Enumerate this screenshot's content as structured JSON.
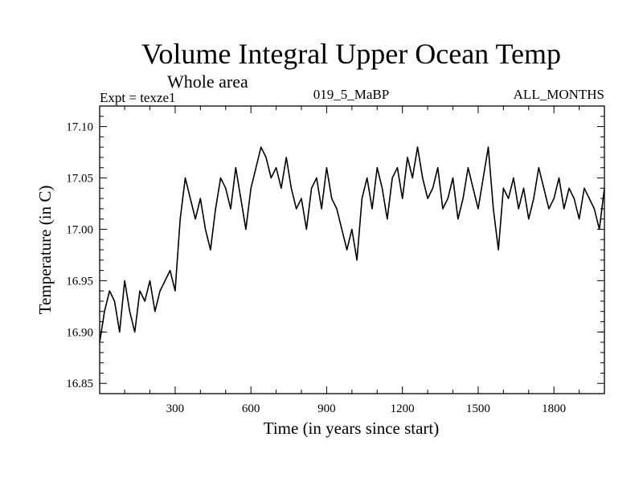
{
  "chart_data": {
    "type": "line",
    "title": "Volume Integral Upper Ocean Temp",
    "subtitle": "Whole area",
    "expt": "Expt = texze1",
    "run": "019_5_MaBP",
    "months": "ALL_MONTHS",
    "xlabel": "Time (in years since start)",
    "ylabel": "Temperature (in C)",
    "xlim": [
      1,
      2000
    ],
    "ylim": [
      16.84,
      17.12
    ],
    "xticks": [
      300,
      600,
      900,
      1200,
      1500,
      1800
    ],
    "xtick_labels": [
      "300",
      "600",
      "900",
      "1200",
      "1500",
      "1800"
    ],
    "yticks": [
      16.85,
      16.9,
      16.95,
      17.0,
      17.05,
      17.1
    ],
    "ytick_labels": [
      "16.85",
      "16.90",
      "16.95",
      "17.00",
      "17.05",
      "17.10"
    ],
    "series": [
      {
        "name": "Volume integral upper ocean temperature",
        "x": [
          1,
          20,
          40,
          60,
          80,
          100,
          120,
          140,
          160,
          180,
          200,
          220,
          240,
          260,
          280,
          300,
          320,
          340,
          360,
          380,
          400,
          420,
          440,
          460,
          480,
          500,
          520,
          540,
          560,
          580,
          600,
          620,
          640,
          660,
          680,
          700,
          720,
          740,
          760,
          780,
          800,
          820,
          840,
          860,
          880,
          900,
          920,
          940,
          960,
          980,
          1000,
          1020,
          1040,
          1060,
          1080,
          1100,
          1120,
          1140,
          1160,
          1180,
          1200,
          1220,
          1240,
          1260,
          1280,
          1300,
          1320,
          1340,
          1360,
          1380,
          1400,
          1420,
          1440,
          1460,
          1480,
          1500,
          1520,
          1540,
          1560,
          1580,
          1600,
          1620,
          1640,
          1660,
          1680,
          1700,
          1720,
          1740,
          1760,
          1780,
          1800,
          1820,
          1840,
          1860,
          1880,
          1900,
          1920,
          1940,
          1960,
          1980,
          2000
        ],
        "y": [
          16.89,
          16.92,
          16.94,
          16.93,
          16.9,
          16.95,
          16.92,
          16.9,
          16.94,
          16.93,
          16.95,
          16.92,
          16.94,
          16.95,
          16.96,
          16.94,
          17.01,
          17.05,
          17.03,
          17.01,
          17.03,
          17.0,
          16.98,
          17.02,
          17.05,
          17.04,
          17.02,
          17.06,
          17.03,
          17.0,
          17.04,
          17.06,
          17.08,
          17.07,
          17.05,
          17.06,
          17.04,
          17.07,
          17.04,
          17.02,
          17.03,
          17.0,
          17.04,
          17.05,
          17.02,
          17.06,
          17.03,
          17.02,
          17.0,
          16.98,
          17.0,
          16.97,
          17.03,
          17.05,
          17.02,
          17.06,
          17.04,
          17.01,
          17.05,
          17.06,
          17.03,
          17.07,
          17.05,
          17.08,
          17.05,
          17.03,
          17.04,
          17.06,
          17.02,
          17.03,
          17.05,
          17.01,
          17.03,
          17.06,
          17.04,
          17.02,
          17.05,
          17.08,
          17.02,
          16.98,
          17.04,
          17.03,
          17.05,
          17.02,
          17.04,
          17.01,
          17.03,
          17.06,
          17.04,
          17.02,
          17.03,
          17.05,
          17.02,
          17.04,
          17.03,
          17.01,
          17.04,
          17.03,
          17.02,
          17.0,
          17.04
        ]
      }
    ],
    "line_color": "#000000"
  }
}
